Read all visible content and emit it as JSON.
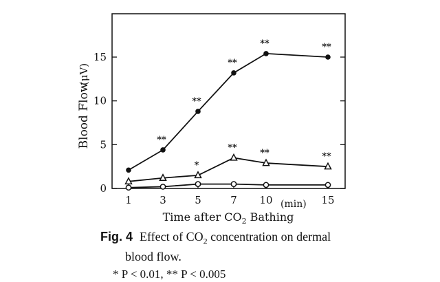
{
  "chart_data": {
    "type": "line",
    "x": [
      1,
      3,
      5,
      7,
      10,
      15
    ],
    "xtick_labels": [
      "1",
      "3",
      "5",
      "7",
      "10",
      "15"
    ],
    "x_unit": "(min)",
    "xlabel_pre": "Time after CO",
    "xlabel_sub": "2",
    "xlabel_post": " Bathing",
    "ylabel": "Blood Flow",
    "y_unit": "(μV)",
    "ylim": [
      0,
      20
    ],
    "yticks": [
      0,
      5,
      10,
      15
    ],
    "ytick_labels": [
      "0",
      "5",
      "10",
      "15"
    ],
    "grid": false,
    "series": [
      {
        "marker": "filled-circle",
        "values": [
          2.1,
          4.4,
          8.8,
          13.2,
          15.4,
          15.0
        ],
        "significance": [
          "",
          "**",
          "**",
          "**",
          "**",
          "**"
        ]
      },
      {
        "marker": "open-triangle",
        "values": [
          0.8,
          1.2,
          1.5,
          3.5,
          2.9,
          2.5
        ],
        "significance": [
          "",
          "",
          "*",
          "**",
          "**",
          "**"
        ]
      },
      {
        "marker": "open-circle",
        "values": [
          0.1,
          0.2,
          0.5,
          0.5,
          0.4,
          0.4
        ],
        "significance": [
          "",
          "",
          "",
          "",
          "",
          ""
        ]
      }
    ]
  },
  "caption": {
    "fig_label": "Fig. 4",
    "line1_pre": "Effect of CO",
    "line1_sub": "2",
    "line1_post": " concentration on dermal",
    "line2": "blood flow.",
    "line3": "* P < 0.01,  ** P < 0.005"
  }
}
